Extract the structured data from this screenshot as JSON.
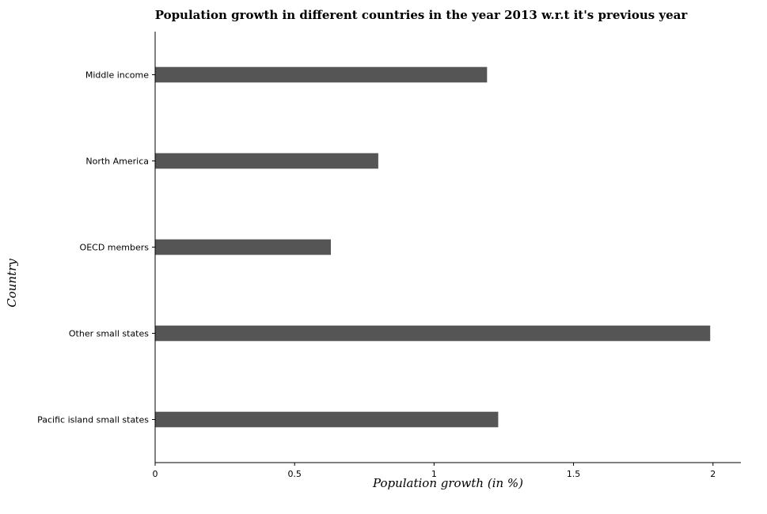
{
  "chart_data": {
    "type": "bar",
    "orientation": "horizontal",
    "title": "Population growth in different countries in the year 2013 w.r.t it's previous year",
    "xlabel": "Population growth (in %)",
    "ylabel": "Country",
    "categories": [
      "Middle income",
      "North America",
      "OECD members",
      "Other small states",
      "Pacific island small states"
    ],
    "values": [
      1.19,
      0.8,
      0.63,
      1.99,
      1.23
    ],
    "xlim": [
      0,
      2.1
    ],
    "xticks": [
      0,
      0.5,
      1,
      1.5,
      2
    ],
    "xtick_labels": [
      "0",
      "0.5",
      "1",
      "1.5",
      "2"
    ],
    "grid": false,
    "bar_color": "#555555"
  }
}
